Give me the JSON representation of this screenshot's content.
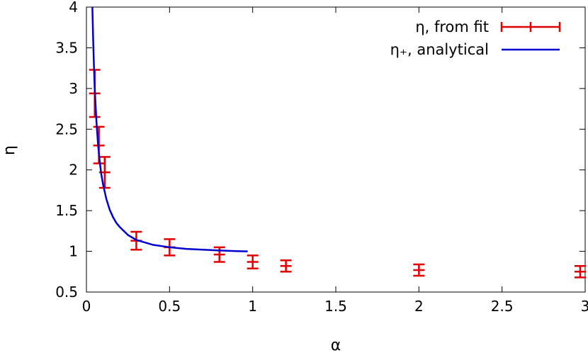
{
  "chart_data": {
    "type": "scatter",
    "xlabel": "α",
    "ylabel": "η",
    "xlim": [
      0,
      3
    ],
    "ylim": [
      0.5,
      4
    ],
    "xticks": [
      "0",
      "0.5",
      "1",
      "1.5",
      "2",
      "2.5",
      "3"
    ],
    "yticks": [
      "0.5",
      "1",
      "1.5",
      "2",
      "2.5",
      "3",
      "3.5",
      "4"
    ],
    "grid": false,
    "legend_position": "top-right",
    "series": [
      {
        "name": "η, from fit",
        "kind": "errorbar",
        "color": "#e00000",
        "points": [
          {
            "x": 0.05,
            "y": 2.94,
            "lo": 2.65,
            "hi": 3.23
          },
          {
            "x": 0.075,
            "y": 2.3,
            "lo": 2.08,
            "hi": 2.53
          },
          {
            "x": 0.11,
            "y": 1.97,
            "lo": 1.78,
            "hi": 2.16
          },
          {
            "x": 0.3,
            "y": 1.13,
            "lo": 1.02,
            "hi": 1.24
          },
          {
            "x": 0.5,
            "y": 1.05,
            "lo": 0.95,
            "hi": 1.15
          },
          {
            "x": 0.8,
            "y": 0.96,
            "lo": 0.87,
            "hi": 1.05
          },
          {
            "x": 1.0,
            "y": 0.87,
            "lo": 0.79,
            "hi": 0.95
          },
          {
            "x": 1.2,
            "y": 0.82,
            "lo": 0.75,
            "hi": 0.89
          },
          {
            "x": 2.0,
            "y": 0.77,
            "lo": 0.7,
            "hi": 0.84
          },
          {
            "x": 2.97,
            "y": 0.75,
            "lo": 0.68,
            "hi": 0.82
          }
        ]
      },
      {
        "name": "η₊, analytical",
        "kind": "line",
        "color": "#0000d0",
        "x": [
          0.036,
          0.04,
          0.045,
          0.05,
          0.06,
          0.07,
          0.08,
          0.09,
          0.1,
          0.12,
          0.14,
          0.16,
          0.18,
          0.2,
          0.25,
          0.3,
          0.35,
          0.4,
          0.5,
          0.6,
          0.7,
          0.8,
          0.9,
          0.97
        ],
        "y": [
          4.0,
          3.63,
          3.28,
          3.0,
          2.6,
          2.31,
          2.1,
          1.94,
          1.82,
          1.64,
          1.51,
          1.42,
          1.35,
          1.3,
          1.2,
          1.14,
          1.11,
          1.08,
          1.05,
          1.03,
          1.02,
          1.01,
          1.003,
          1.0
        ]
      }
    ]
  }
}
